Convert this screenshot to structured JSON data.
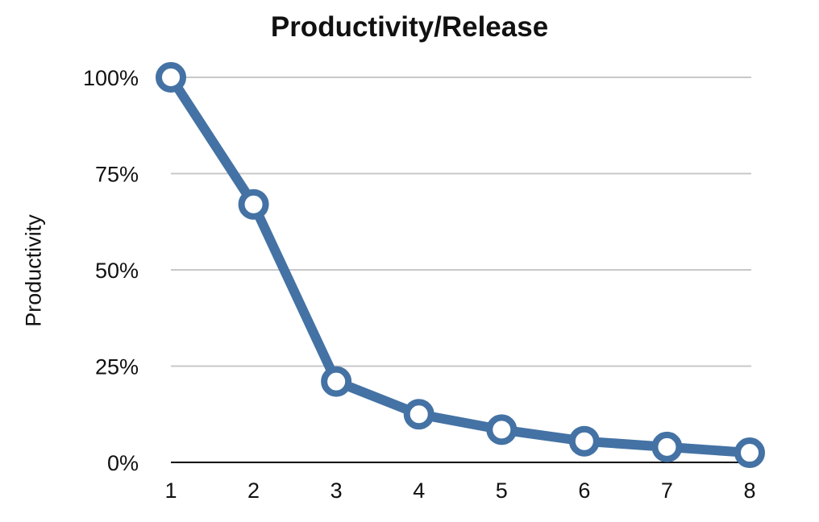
{
  "chart_data": {
    "type": "line",
    "title": "Productivity/Release",
    "xlabel": "",
    "ylabel": "Productivity",
    "x": [
      1,
      2,
      3,
      4,
      5,
      6,
      7,
      8
    ],
    "y_tick_labels": [
      "0%",
      "25%",
      "50%",
      "75%",
      "100%"
    ],
    "x_tick_labels": [
      "1",
      "2",
      "3",
      "4",
      "5",
      "6",
      "7",
      "8"
    ],
    "ylim": [
      0,
      100
    ],
    "grid": true,
    "series": [
      {
        "values": [
          100,
          67,
          21,
          12.5,
          8.5,
          5.5,
          4,
          2.5
        ],
        "color": "#4472a4",
        "marker": "hollow-circle"
      }
    ]
  }
}
